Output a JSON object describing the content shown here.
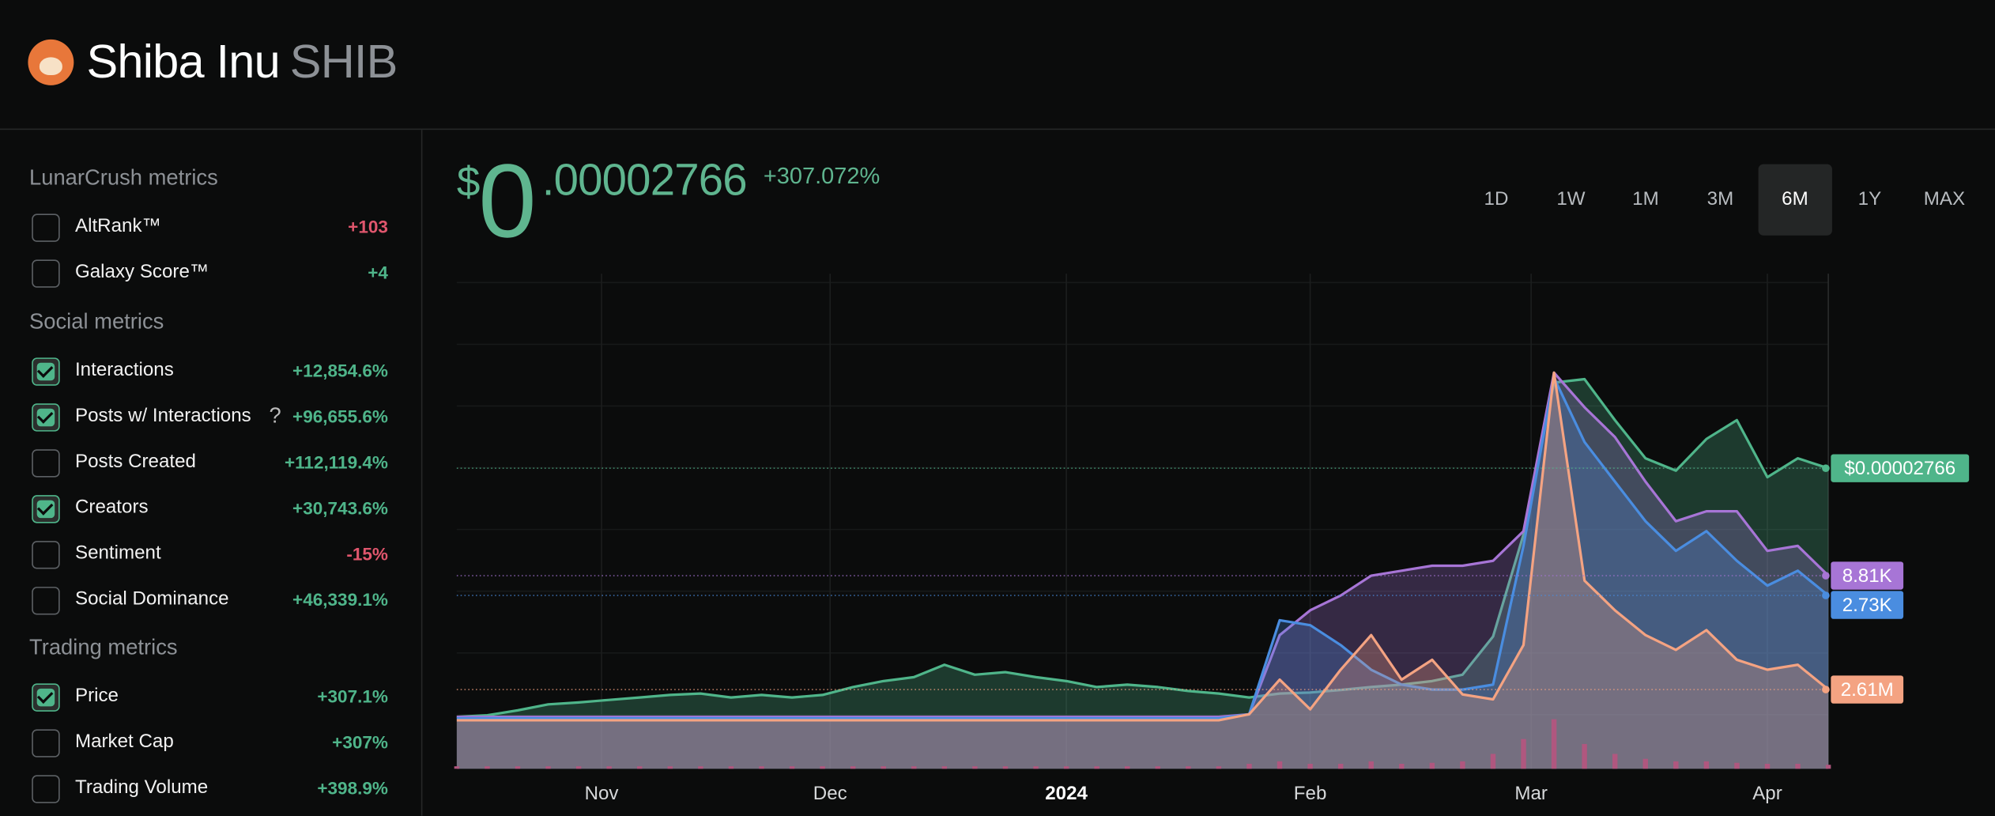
{
  "header": {
    "title": "Shiba Inu",
    "ticker": "SHIB"
  },
  "sidebar": {
    "sections": [
      {
        "title": "LunarCrush metrics",
        "items": [
          {
            "label": "AltRank™",
            "change": "+103",
            "checked": false,
            "color": "#e0566d"
          },
          {
            "label": "Galaxy Score™",
            "change": "+4",
            "checked": false,
            "color": "#4fb58a"
          }
        ]
      },
      {
        "title": "Social metrics",
        "items": [
          {
            "label": "Interactions",
            "change": "+12,854.6%",
            "checked": true,
            "color": "#4fb58a"
          },
          {
            "label": "Posts w/ Interactions",
            "hint": "?",
            "change": "+96,655.6%",
            "checked": true,
            "color": "#4fb58a"
          },
          {
            "label": "Posts Created",
            "change": "+112,119.4%",
            "checked": false,
            "color": "#4fb58a"
          },
          {
            "label": "Creators",
            "change": "+30,743.6%",
            "checked": true,
            "color": "#4fb58a"
          },
          {
            "label": "Sentiment",
            "change": "-15%",
            "checked": false,
            "color": "#e0566d"
          },
          {
            "label": "Social Dominance",
            "change": "+46,339.1%",
            "checked": false,
            "color": "#4fb58a"
          }
        ]
      },
      {
        "title": "Trading metrics",
        "items": [
          {
            "label": "Price",
            "change": "+307.1%",
            "checked": true,
            "color": "#4fb58a"
          },
          {
            "label": "Market Cap",
            "change": "+307%",
            "checked": false,
            "color": "#4fb58a"
          },
          {
            "label": "Trading Volume",
            "change": "+398.9%",
            "checked": false,
            "color": "#4fb58a"
          }
        ]
      }
    ]
  },
  "price": {
    "currency": "$",
    "integer": "0",
    "decimals": ".00002766",
    "change": "+307.072%"
  },
  "ranges": {
    "options": [
      "1D",
      "1W",
      "1M",
      "3M",
      "6M",
      "1Y",
      "MAX"
    ],
    "active": 4
  },
  "chart_data": {
    "type": "area",
    "x": [
      0,
      4,
      8,
      12,
      16,
      20,
      24,
      28,
      32,
      36,
      40,
      44,
      48,
      52,
      56,
      60,
      64,
      68,
      72,
      76,
      80,
      84,
      88,
      92,
      96,
      100,
      104,
      108,
      112,
      116,
      120,
      124,
      128,
      132,
      136,
      140,
      144,
      148,
      152,
      156,
      160,
      164,
      168,
      172,
      176,
      180
    ],
    "xlim": [
      0,
      180
    ],
    "xticks": [
      {
        "value": 19,
        "label": "Nov"
      },
      {
        "value": 49,
        "label": "Dec"
      },
      {
        "value": 80,
        "label": "2024"
      },
      {
        "value": 112,
        "label": "Feb"
      },
      {
        "value": 141,
        "label": "Mar"
      },
      {
        "value": 172,
        "label": "Apr"
      }
    ],
    "ylim": [
      0,
      100
    ],
    "grid": true,
    "series": [
      {
        "color": "#4fb58a",
        "end_label": "$0.00002766",
        "values": [
          10.5,
          10.8,
          11.8,
          13,
          13.4,
          13.9,
          14.4,
          14.9,
          15.2,
          14.4,
          14.9,
          14.4,
          14.9,
          16.5,
          17.7,
          18.5,
          21,
          19,
          19.5,
          18.5,
          17.7,
          16.5,
          17,
          16.5,
          15.7,
          15.2,
          14.4,
          15.2,
          15.4,
          15.9,
          16.5,
          17,
          17.7,
          19,
          26.7,
          47.3,
          78,
          78.7,
          70.4,
          62.7,
          60.2,
          66.6,
          70.4,
          58.9,
          62.7,
          60.7
        ]
      },
      {
        "color": "#a775d6",
        "end_label": "8.81K",
        "values": [
          10.5,
          10.5,
          10.5,
          10.5,
          10.5,
          10.5,
          10.5,
          10.5,
          10.5,
          10.5,
          10.5,
          10.5,
          10.5,
          10.5,
          10.5,
          10.5,
          10.5,
          10.5,
          10.5,
          10.5,
          10.5,
          10.5,
          10.5,
          10.5,
          10.5,
          10.5,
          11,
          27,
          32,
          35,
          39,
          40,
          41,
          41,
          42,
          48,
          80,
          73,
          67,
          58,
          50,
          52,
          52,
          44,
          45,
          39
        ]
      },
      {
        "color": "#4a8de0",
        "end_label": "2.73K",
        "values": [
          10.2,
          10.2,
          10.2,
          10.2,
          10.2,
          10.2,
          10.2,
          10.2,
          10.2,
          10.2,
          10.2,
          10.2,
          10.2,
          10.2,
          10.2,
          10.2,
          10.2,
          10.2,
          10.2,
          10.2,
          10.2,
          10.2,
          10.2,
          10.2,
          10.2,
          10.2,
          11,
          30,
          29,
          25,
          20,
          17,
          16,
          16,
          17,
          45,
          79,
          66,
          58,
          50,
          44,
          48,
          42,
          37,
          40,
          35
        ]
      },
      {
        "color": "#f4a382",
        "end_label": "2.61M",
        "values": [
          9.8,
          9.8,
          9.8,
          9.8,
          9.8,
          9.8,
          9.8,
          9.8,
          9.8,
          9.8,
          9.8,
          9.8,
          9.8,
          9.8,
          9.8,
          9.8,
          9.8,
          9.8,
          9.8,
          9.8,
          9.8,
          9.8,
          9.8,
          9.8,
          9.8,
          9.8,
          11,
          18,
          12,
          20,
          27,
          18,
          22,
          15,
          14,
          25,
          80,
          38,
          32,
          27,
          24,
          28,
          22,
          20,
          21,
          16
        ]
      }
    ],
    "volume": {
      "color": "#b0577f",
      "values": [
        0.5,
        0.5,
        0.5,
        0.5,
        0.5,
        0.5,
        0.5,
        0.5,
        0.5,
        0.5,
        0.5,
        0.5,
        0.5,
        0.5,
        0.5,
        0.5,
        0.5,
        0.5,
        0.5,
        0.5,
        0.5,
        0.5,
        0.5,
        0.5,
        0.5,
        0.5,
        1,
        1.5,
        1,
        1,
        1.5,
        1,
        1.2,
        1.5,
        3,
        6,
        10,
        5,
        3,
        2,
        1.5,
        1.5,
        1.2,
        1,
        1,
        0.8
      ]
    }
  }
}
